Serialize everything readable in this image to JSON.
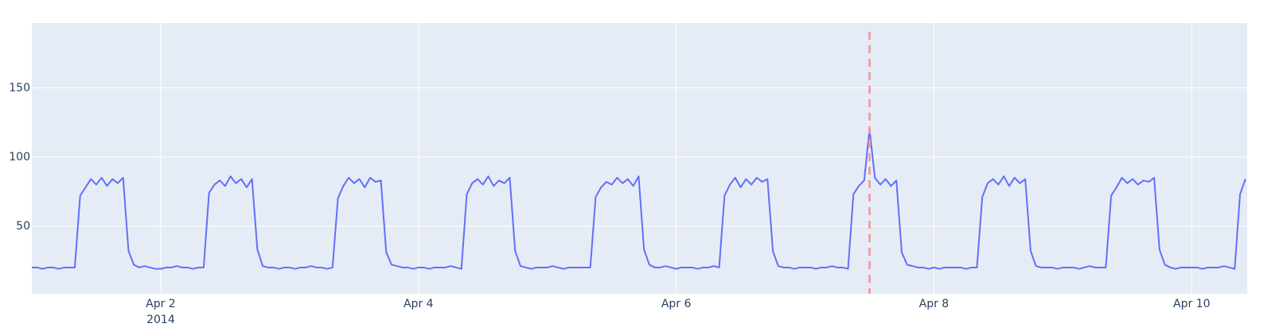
{
  "chart_data": {
    "type": "line",
    "x": [
      "2014-04-01 00:00",
      "2014-04-01 01:00",
      "2014-04-01 02:00",
      "2014-04-01 03:00",
      "2014-04-01 04:00",
      "2014-04-01 05:00",
      "2014-04-01 06:00",
      "2014-04-01 07:00",
      "2014-04-01 08:00",
      "2014-04-01 09:00",
      "2014-04-01 10:00",
      "2014-04-01 11:00",
      "2014-04-01 12:00",
      "2014-04-01 13:00",
      "2014-04-01 14:00",
      "2014-04-01 15:00",
      "2014-04-01 16:00",
      "2014-04-01 17:00",
      "2014-04-01 18:00",
      "2014-04-01 19:00",
      "2014-04-01 20:00",
      "2014-04-01 21:00",
      "2014-04-01 22:00",
      "2014-04-01 23:00",
      "2014-04-02 00:00",
      "2014-04-02 01:00",
      "2014-04-02 02:00",
      "2014-04-02 03:00",
      "2014-04-02 04:00",
      "2014-04-02 05:00",
      "2014-04-02 06:00",
      "2014-04-02 07:00",
      "2014-04-02 08:00",
      "2014-04-02 09:00",
      "2014-04-02 10:00",
      "2014-04-02 11:00",
      "2014-04-02 12:00",
      "2014-04-02 13:00",
      "2014-04-02 14:00",
      "2014-04-02 15:00",
      "2014-04-02 16:00",
      "2014-04-02 17:00",
      "2014-04-02 18:00",
      "2014-04-02 19:00",
      "2014-04-02 20:00",
      "2014-04-02 21:00",
      "2014-04-02 22:00",
      "2014-04-02 23:00",
      "2014-04-03 00:00",
      "2014-04-03 01:00",
      "2014-04-03 02:00",
      "2014-04-03 03:00",
      "2014-04-03 04:00",
      "2014-04-03 05:00",
      "2014-04-03 06:00",
      "2014-04-03 07:00",
      "2014-04-03 08:00",
      "2014-04-03 09:00",
      "2014-04-03 10:00",
      "2014-04-03 11:00",
      "2014-04-03 12:00",
      "2014-04-03 13:00",
      "2014-04-03 14:00",
      "2014-04-03 15:00",
      "2014-04-03 16:00",
      "2014-04-03 17:00",
      "2014-04-03 18:00",
      "2014-04-03 19:00",
      "2014-04-03 20:00",
      "2014-04-03 21:00",
      "2014-04-03 22:00",
      "2014-04-03 23:00",
      "2014-04-04 00:00",
      "2014-04-04 01:00",
      "2014-04-04 02:00",
      "2014-04-04 03:00",
      "2014-04-04 04:00",
      "2014-04-04 05:00",
      "2014-04-04 06:00",
      "2014-04-04 07:00",
      "2014-04-04 08:00",
      "2014-04-04 09:00",
      "2014-04-04 10:00",
      "2014-04-04 11:00",
      "2014-04-04 12:00",
      "2014-04-04 13:00",
      "2014-04-04 14:00",
      "2014-04-04 15:00",
      "2014-04-04 16:00",
      "2014-04-04 17:00",
      "2014-04-04 18:00",
      "2014-04-04 19:00",
      "2014-04-04 20:00",
      "2014-04-04 21:00",
      "2014-04-04 22:00",
      "2014-04-04 23:00",
      "2014-04-05 00:00",
      "2014-04-05 01:00",
      "2014-04-05 02:00",
      "2014-04-05 03:00",
      "2014-04-05 04:00",
      "2014-04-05 05:00",
      "2014-04-05 06:00",
      "2014-04-05 07:00",
      "2014-04-05 08:00",
      "2014-04-05 09:00",
      "2014-04-05 10:00",
      "2014-04-05 11:00",
      "2014-04-05 12:00",
      "2014-04-05 13:00",
      "2014-04-05 14:00",
      "2014-04-05 15:00",
      "2014-04-05 16:00",
      "2014-04-05 17:00",
      "2014-04-05 18:00",
      "2014-04-05 19:00",
      "2014-04-05 20:00",
      "2014-04-05 21:00",
      "2014-04-05 22:00",
      "2014-04-05 23:00",
      "2014-04-06 00:00",
      "2014-04-06 01:00",
      "2014-04-06 02:00",
      "2014-04-06 03:00",
      "2014-04-06 04:00",
      "2014-04-06 05:00",
      "2014-04-06 06:00",
      "2014-04-06 07:00",
      "2014-04-06 08:00",
      "2014-04-06 09:00",
      "2014-04-06 10:00",
      "2014-04-06 11:00",
      "2014-04-06 12:00",
      "2014-04-06 13:00",
      "2014-04-06 14:00",
      "2014-04-06 15:00",
      "2014-04-06 16:00",
      "2014-04-06 17:00",
      "2014-04-06 18:00",
      "2014-04-06 19:00",
      "2014-04-06 20:00",
      "2014-04-06 21:00",
      "2014-04-06 22:00",
      "2014-04-06 23:00",
      "2014-04-07 00:00",
      "2014-04-07 01:00",
      "2014-04-07 02:00",
      "2014-04-07 03:00",
      "2014-04-07 04:00",
      "2014-04-07 05:00",
      "2014-04-07 06:00",
      "2014-04-07 07:00",
      "2014-04-07 08:00",
      "2014-04-07 09:00",
      "2014-04-07 10:00",
      "2014-04-07 11:00",
      "2014-04-07 12:00",
      "2014-04-07 13:00",
      "2014-04-07 14:00",
      "2014-04-07 15:00",
      "2014-04-07 16:00",
      "2014-04-07 17:00",
      "2014-04-07 18:00",
      "2014-04-07 19:00",
      "2014-04-07 20:00",
      "2014-04-07 21:00",
      "2014-04-07 22:00",
      "2014-04-07 23:00",
      "2014-04-08 00:00",
      "2014-04-08 01:00",
      "2014-04-08 02:00",
      "2014-04-08 03:00",
      "2014-04-08 04:00",
      "2014-04-08 05:00",
      "2014-04-08 06:00",
      "2014-04-08 07:00",
      "2014-04-08 08:00",
      "2014-04-08 09:00",
      "2014-04-08 10:00",
      "2014-04-08 11:00",
      "2014-04-08 12:00",
      "2014-04-08 13:00",
      "2014-04-08 14:00",
      "2014-04-08 15:00",
      "2014-04-08 16:00",
      "2014-04-08 17:00",
      "2014-04-08 18:00",
      "2014-04-08 19:00",
      "2014-04-08 20:00",
      "2014-04-08 21:00",
      "2014-04-08 22:00",
      "2014-04-08 23:00",
      "2014-04-09 00:00",
      "2014-04-09 01:00",
      "2014-04-09 02:00",
      "2014-04-09 03:00",
      "2014-04-09 04:00",
      "2014-04-09 05:00",
      "2014-04-09 06:00",
      "2014-04-09 07:00",
      "2014-04-09 08:00",
      "2014-04-09 09:00",
      "2014-04-09 10:00",
      "2014-04-09 11:00",
      "2014-04-09 12:00",
      "2014-04-09 13:00",
      "2014-04-09 14:00",
      "2014-04-09 15:00",
      "2014-04-09 16:00",
      "2014-04-09 17:00",
      "2014-04-09 18:00",
      "2014-04-09 19:00",
      "2014-04-09 20:00",
      "2014-04-09 21:00",
      "2014-04-09 22:00",
      "2014-04-09 23:00",
      "2014-04-10 00:00",
      "2014-04-10 01:00",
      "2014-04-10 02:00",
      "2014-04-10 03:00",
      "2014-04-10 04:00",
      "2014-04-10 05:00",
      "2014-04-10 06:00",
      "2014-04-10 07:00",
      "2014-04-10 08:00",
      "2014-04-10 09:00",
      "2014-04-10 10:00"
    ],
    "series": [
      {
        "color": "#636efa",
        "values": [
          20,
          20,
          19,
          20,
          20,
          19,
          20,
          20,
          20,
          72,
          78,
          84,
          80,
          85,
          79,
          84,
          81,
          85,
          32,
          22,
          20,
          21,
          20,
          19,
          19,
          20,
          20,
          21,
          20,
          20,
          19,
          20,
          20,
          74,
          80,
          83,
          79,
          86,
          81,
          84,
          78,
          84,
          33,
          21,
          20,
          20,
          19,
          20,
          20,
          19,
          20,
          20,
          21,
          20,
          20,
          19,
          20,
          70,
          79,
          85,
          81,
          84,
          78,
          85,
          82,
          83,
          31,
          22,
          21,
          20,
          20,
          19,
          20,
          20,
          19,
          20,
          20,
          20,
          21,
          20,
          19,
          73,
          81,
          84,
          80,
          86,
          79,
          83,
          81,
          85,
          32,
          21,
          20,
          19,
          20,
          20,
          20,
          21,
          20,
          19,
          20,
          20,
          20,
          20,
          20,
          71,
          78,
          82,
          80,
          85,
          81,
          84,
          79,
          86,
          33,
          22,
          20,
          20,
          21,
          20,
          19,
          20,
          20,
          20,
          19,
          20,
          20,
          21,
          20,
          72,
          80,
          85,
          78,
          84,
          80,
          85,
          82,
          84,
          32,
          21,
          20,
          20,
          19,
          20,
          20,
          20,
          19,
          20,
          20,
          21,
          20,
          20,
          19,
          73,
          79,
          83,
          120,
          85,
          80,
          84,
          79,
          83,
          31,
          22,
          21,
          20,
          20,
          19,
          20,
          19,
          20,
          20,
          20,
          20,
          19,
          20,
          20,
          71,
          81,
          84,
          80,
          86,
          79,
          85,
          81,
          84,
          32,
          21,
          20,
          20,
          20,
          19,
          20,
          20,
          20,
          19,
          20,
          21,
          20,
          20,
          20,
          72,
          78,
          85,
          81,
          84,
          80,
          83,
          82,
          85,
          33,
          22,
          20,
          19,
          20,
          20,
          20,
          20,
          19,
          20,
          20,
          20,
          21,
          20,
          19,
          73,
          84
        ]
      }
    ],
    "vline": {
      "x": "2014-04-07 12:00",
      "color": "#ef9a9a"
    },
    "xlim": [
      "2014-04-01 00:00",
      "2014-04-10 10:20"
    ],
    "xticks": [
      {
        "value": "2014-04-02 00:00",
        "label": "Apr 2"
      },
      {
        "value": "2014-04-04 00:00",
        "label": "Apr 4"
      },
      {
        "value": "2014-04-06 00:00",
        "label": "Apr 6"
      },
      {
        "value": "2014-04-08 00:00",
        "label": "Apr 8"
      },
      {
        "value": "2014-04-10 00:00",
        "label": "Apr 10"
      }
    ],
    "xtick_year": "2014",
    "ylim": [
      1,
      197
    ],
    "yticks": [
      50,
      100,
      150
    ],
    "grid": true
  }
}
